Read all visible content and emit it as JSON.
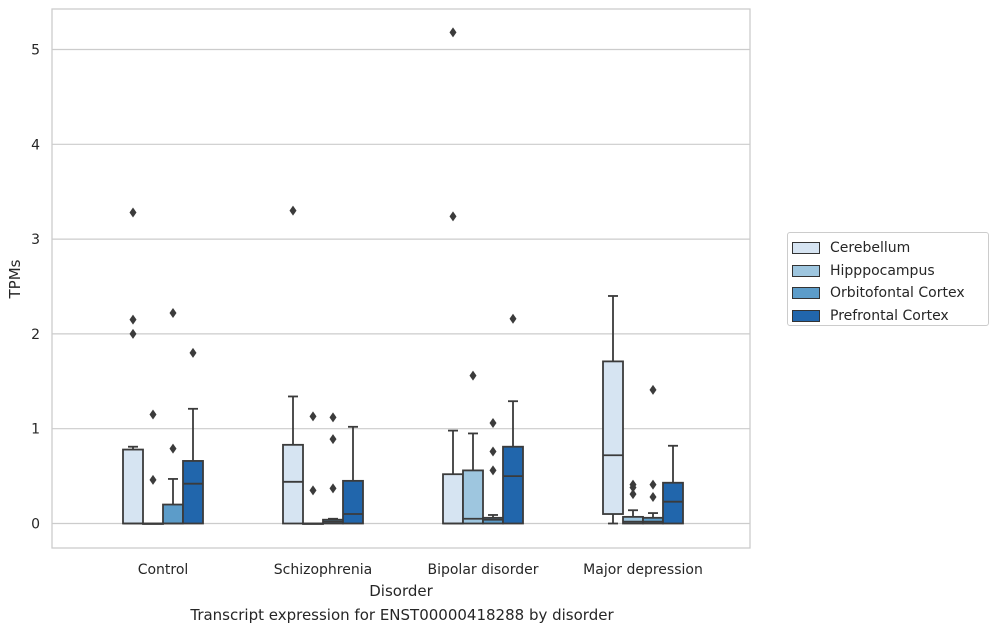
{
  "caption": "Transcript expression for ENST00000418288 by disorder",
  "chart_data": {
    "type": "box",
    "xlabel": "Disorder",
    "ylabel": "TPMs",
    "ylim": [
      -0.25,
      5.42
    ],
    "yticks": [
      0,
      1,
      2,
      3,
      4,
      5
    ],
    "grid": true,
    "legend_placement": "right",
    "categories": [
      "Control",
      "Schizophrenia",
      "Bipolar disorder",
      "Major depression"
    ],
    "series": [
      {
        "name": "Cerebellum",
        "color": "#d6e4f2",
        "boxes": [
          {
            "whisker_low": 0,
            "q1": 0,
            "median": 0,
            "q3": 0.78,
            "whisker_high": 0.81,
            "outliers": [
              3.28,
              2.15,
              2.0
            ]
          },
          {
            "whisker_low": 0,
            "q1": 0,
            "median": 0.44,
            "q3": 0.83,
            "whisker_high": 1.34,
            "outliers": [
              3.3
            ]
          },
          {
            "whisker_low": 0,
            "q1": 0,
            "median": 0,
            "q3": 0.52,
            "whisker_high": 0.98,
            "outliers": [
              5.18,
              3.24
            ]
          },
          {
            "whisker_low": 0,
            "q1": 0.1,
            "median": 0.72,
            "q3": 1.71,
            "whisker_high": 2.4,
            "outliers": []
          }
        ]
      },
      {
        "name": "Hipppocampus",
        "color": "#9ec6df",
        "boxes": [
          {
            "whisker_low": 0,
            "q1": 0,
            "median": 0,
            "q3": 0,
            "whisker_high": 0,
            "outliers": [
              1.15,
              0.46
            ]
          },
          {
            "whisker_low": 0,
            "q1": 0,
            "median": 0,
            "q3": 0,
            "whisker_high": 0,
            "outliers": [
              1.13,
              0.35
            ]
          },
          {
            "whisker_low": 0,
            "q1": 0,
            "median": 0.05,
            "q3": 0.56,
            "whisker_high": 0.95,
            "outliers": [
              1.56
            ]
          },
          {
            "whisker_low": 0,
            "q1": 0,
            "median": 0.02,
            "q3": 0.07,
            "whisker_high": 0.14,
            "outliers": [
              0.41,
              0.38,
              0.31
            ]
          }
        ]
      },
      {
        "name": "Orbitofontal Cortex",
        "color": "#5c9cc9",
        "boxes": [
          {
            "whisker_low": 0,
            "q1": 0,
            "median": 0,
            "q3": 0.2,
            "whisker_high": 0.47,
            "outliers": [
              2.22,
              0.79
            ]
          },
          {
            "whisker_low": 0,
            "q1": 0,
            "median": 0.02,
            "q3": 0.04,
            "whisker_high": 0.05,
            "outliers": [
              1.12,
              0.89,
              0.37
            ]
          },
          {
            "whisker_low": 0,
            "q1": 0,
            "median": 0.04,
            "q3": 0.06,
            "whisker_high": 0.09,
            "outliers": [
              1.06,
              0.76,
              0.56
            ]
          },
          {
            "whisker_low": 0,
            "q1": 0,
            "median": 0.02,
            "q3": 0.06,
            "whisker_high": 0.11,
            "outliers": [
              1.41,
              0.41,
              0.28
            ]
          }
        ]
      },
      {
        "name": "Prefrontal Cortex",
        "color": "#2166ac",
        "boxes": [
          {
            "whisker_low": 0,
            "q1": 0,
            "median": 0.42,
            "q3": 0.66,
            "whisker_high": 1.21,
            "outliers": [
              1.8
            ]
          },
          {
            "whisker_low": 0,
            "q1": 0,
            "median": 0.1,
            "q3": 0.45,
            "whisker_high": 1.02,
            "outliers": []
          },
          {
            "whisker_low": 0,
            "q1": 0,
            "median": 0.5,
            "q3": 0.81,
            "whisker_high": 1.29,
            "outliers": [
              2.16
            ]
          },
          {
            "whisker_low": 0,
            "q1": 0,
            "median": 0.23,
            "q3": 0.43,
            "whisker_high": 0.82,
            "outliers": []
          }
        ]
      }
    ]
  }
}
